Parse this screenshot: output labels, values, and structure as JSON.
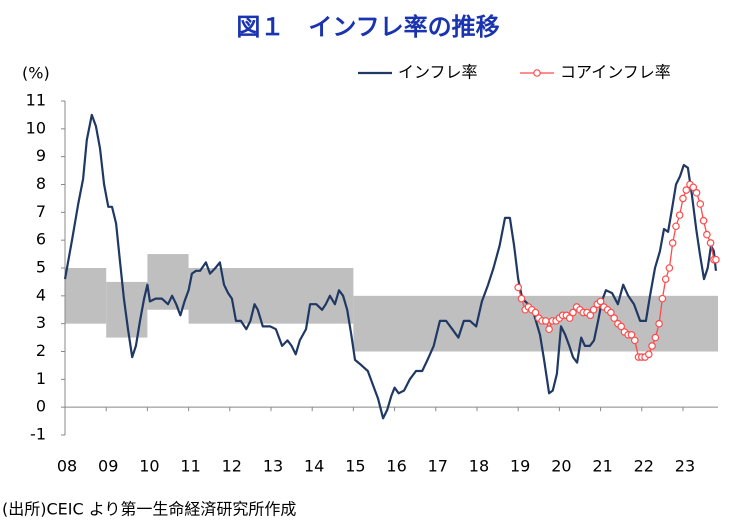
{
  "chart_data": {
    "type": "line",
    "title": "図１　インフレ率の推移",
    "y_unit": "(%)",
    "source": "(出所)CEIC より第一生命経済研究所作成",
    "xlim": [
      2008,
      2023.85
    ],
    "xticks": [
      {
        "value": 2008,
        "label": "08"
      },
      {
        "value": 2009,
        "label": "09"
      },
      {
        "value": 2010,
        "label": "10"
      },
      {
        "value": 2011,
        "label": "11"
      },
      {
        "value": 2012,
        "label": "12"
      },
      {
        "value": 2013,
        "label": "13"
      },
      {
        "value": 2014,
        "label": "14"
      },
      {
        "value": 2015,
        "label": "15"
      },
      {
        "value": 2016,
        "label": "16"
      },
      {
        "value": 2017,
        "label": "17"
      },
      {
        "value": 2018,
        "label": "18"
      },
      {
        "value": 2019,
        "label": "19"
      },
      {
        "value": 2020,
        "label": "20"
      },
      {
        "value": 2021,
        "label": "21"
      },
      {
        "value": 2022,
        "label": "22"
      },
      {
        "value": 2023,
        "label": "23"
      }
    ],
    "ylim": [
      -1,
      11
    ],
    "yticks": [
      -1,
      0,
      1,
      2,
      3,
      4,
      5,
      6,
      7,
      8,
      9,
      10,
      11
    ],
    "band_color": "#bfbfbf",
    "band": [
      {
        "x": [
          2008,
          2009
        ],
        "range": [
          3,
          5
        ]
      },
      {
        "x": [
          2009,
          2010
        ],
        "range": [
          2.5,
          4.5
        ]
      },
      {
        "x": [
          2010,
          2011
        ],
        "range": [
          3.5,
          5.5
        ]
      },
      {
        "x": [
          2011,
          2015
        ],
        "range": [
          3,
          5
        ]
      },
      {
        "x": [
          2015,
          2023.85
        ],
        "range": [
          2,
          4
        ]
      }
    ],
    "series": [
      {
        "name": "インフレ率",
        "color": "#1f3864",
        "markers": false,
        "x": [
          2008.0,
          2008.17,
          2008.32,
          2008.44,
          2008.53,
          2008.65,
          2008.75,
          2008.85,
          2008.95,
          2009.05,
          2009.14,
          2009.24,
          2009.33,
          2009.43,
          2009.53,
          2009.63,
          2009.72,
          2009.82,
          2009.92,
          2010.0,
          2010.06,
          2010.2,
          2010.35,
          2010.5,
          2010.6,
          2010.7,
          2010.8,
          2010.9,
          2011.0,
          2011.08,
          2011.18,
          2011.28,
          2011.42,
          2011.52,
          2011.65,
          2011.76,
          2011.86,
          2011.96,
          2012.05,
          2012.15,
          2012.27,
          2012.4,
          2012.5,
          2012.6,
          2012.68,
          2012.8,
          2012.98,
          2013.12,
          2013.27,
          2013.4,
          2013.5,
          2013.6,
          2013.7,
          2013.85,
          2013.95,
          2014.1,
          2014.24,
          2014.33,
          2014.43,
          2014.55,
          2014.65,
          2014.75,
          2014.85,
          2014.95,
          2015.04,
          2015.2,
          2015.35,
          2015.5,
          2015.6,
          2015.72,
          2015.82,
          2015.92,
          2016.0,
          2016.1,
          2016.23,
          2016.37,
          2016.52,
          2016.67,
          2016.8,
          2016.95,
          2017.1,
          2017.25,
          2017.4,
          2017.55,
          2017.68,
          2017.83,
          2017.98,
          2018.12,
          2018.27,
          2018.4,
          2018.55,
          2018.68,
          2018.8,
          2018.9,
          2019.0,
          2019.1,
          2019.24,
          2019.39,
          2019.53,
          2019.63,
          2019.75,
          2019.84,
          2019.94,
          2020.04,
          2020.14,
          2020.24,
          2020.33,
          2020.43,
          2020.53,
          2020.62,
          2020.74,
          2020.84,
          2020.94,
          2021.03,
          2021.13,
          2021.28,
          2021.42,
          2021.55,
          2021.67,
          2021.81,
          2021.96,
          2022.1,
          2022.2,
          2022.32,
          2022.44,
          2022.54,
          2022.64,
          2022.73,
          2022.83,
          2022.93,
          2023.02,
          2023.12,
          2023.22,
          2023.32,
          2023.41,
          2023.51,
          2023.6,
          2023.68,
          2023.75,
          2023.8
        ],
        "values": [
          4.6,
          6.0,
          7.3,
          8.2,
          9.6,
          10.5,
          10.1,
          9.3,
          8.0,
          7.2,
          7.2,
          6.6,
          5.3,
          3.9,
          2.8,
          1.8,
          2.2,
          3.1,
          3.9,
          4.4,
          3.8,
          3.9,
          3.9,
          3.7,
          4.0,
          3.7,
          3.3,
          3.8,
          4.2,
          4.8,
          4.9,
          4.9,
          5.2,
          4.8,
          5.0,
          5.2,
          4.4,
          4.1,
          3.9,
          3.1,
          3.1,
          2.8,
          3.1,
          3.7,
          3.5,
          2.9,
          2.9,
          2.8,
          2.2,
          2.4,
          2.2,
          1.9,
          2.4,
          2.8,
          3.7,
          3.7,
          3.5,
          3.7,
          4.0,
          3.7,
          4.2,
          4.0,
          3.5,
          2.6,
          1.7,
          1.5,
          1.3,
          0.7,
          0.3,
          -0.4,
          -0.1,
          0.4,
          0.7,
          0.5,
          0.6,
          1.0,
          1.3,
          1.3,
          1.7,
          2.2,
          3.1,
          3.1,
          2.8,
          2.5,
          3.1,
          3.1,
          2.9,
          3.8,
          4.4,
          5.0,
          5.8,
          6.8,
          6.8,
          5.8,
          4.6,
          3.9,
          3.7,
          3.3,
          2.6,
          1.7,
          0.5,
          0.6,
          1.2,
          2.9,
          2.6,
          2.2,
          1.8,
          1.6,
          2.5,
          2.2,
          2.2,
          2.4,
          3.1,
          3.8,
          4.2,
          4.1,
          3.7,
          4.4,
          4.0,
          3.7,
          3.1,
          3.1,
          4.0,
          5.0,
          5.6,
          6.4,
          6.3,
          7.1,
          8.0,
          8.3,
          8.7,
          8.6,
          7.6,
          6.4,
          5.5,
          4.6,
          5.0,
          5.8,
          5.6,
          4.9
        ]
      },
      {
        "name": "コアインフレ率",
        "color": "#ff4b4b",
        "markers": true,
        "x": [
          2019.0,
          2019.08,
          2019.17,
          2019.25,
          2019.33,
          2019.42,
          2019.5,
          2019.58,
          2019.67,
          2019.75,
          2019.83,
          2019.92,
          2020.0,
          2020.08,
          2020.17,
          2020.25,
          2020.33,
          2020.42,
          2020.5,
          2020.58,
          2020.67,
          2020.75,
          2020.83,
          2020.92,
          2021.0,
          2021.08,
          2021.17,
          2021.25,
          2021.33,
          2021.42,
          2021.5,
          2021.58,
          2021.67,
          2021.75,
          2021.83,
          2021.92,
          2022.0,
          2022.08,
          2022.17,
          2022.25,
          2022.33,
          2022.42,
          2022.5,
          2022.58,
          2022.67,
          2022.75,
          2022.83,
          2022.92,
          2023.0,
          2023.08,
          2023.17,
          2023.25,
          2023.33,
          2023.42,
          2023.5,
          2023.58,
          2023.67,
          2023.75,
          2023.8
        ],
        "values": [
          4.3,
          3.9,
          3.5,
          3.6,
          3.5,
          3.4,
          3.2,
          3.1,
          3.1,
          2.8,
          3.1,
          3.1,
          3.2,
          3.3,
          3.3,
          3.2,
          3.4,
          3.6,
          3.5,
          3.4,
          3.4,
          3.3,
          3.5,
          3.7,
          3.8,
          3.6,
          3.5,
          3.4,
          3.2,
          3.0,
          2.9,
          2.7,
          2.6,
          2.6,
          2.4,
          1.8,
          1.8,
          1.8,
          1.9,
          2.2,
          2.5,
          3.0,
          3.9,
          4.6,
          5.0,
          5.9,
          6.5,
          6.9,
          7.5,
          7.8,
          8.0,
          7.9,
          7.7,
          7.3,
          6.7,
          6.2,
          5.9,
          5.3,
          5.3
        ]
      }
    ]
  }
}
